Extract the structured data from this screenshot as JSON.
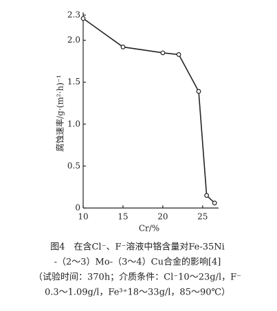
{
  "chart_data": {
    "type": "line",
    "x_label": "Cr/%",
    "y_label": "腐蚀速率/g·(m²·h)⁻¹",
    "x": [
      10,
      15,
      20,
      22,
      24.5,
      25.5,
      26.5
    ],
    "series": [
      {
        "color": "#222222",
        "values": [
          2.26,
          1.92,
          1.85,
          1.83,
          1.39,
          0.15,
          0.06
        ]
      }
    ],
    "xlim": [
      10,
      27
    ],
    "xticks": [
      10,
      15,
      20,
      25
    ],
    "ylim": [
      0,
      2.3
    ],
    "yticks": [
      0,
      0.5,
      {
        "value": 1,
        "label": "1.0"
      },
      1.5,
      {
        "value": 2,
        "label": "2.0"
      },
      2.3
    ],
    "grid": false,
    "caption": [
      "图4　在含Cl⁻、F⁻溶液中铬含量对Fe-35Ni",
      "-（2～3）Mo-（3～4）Cu合金的影响[4]",
      "（试验时间：370h；介质条件：Cl⁻10～23g/l，F⁻",
      "0.3～1.09g/l，Fe³⁺18～33g/l，85～90℃）"
    ]
  }
}
